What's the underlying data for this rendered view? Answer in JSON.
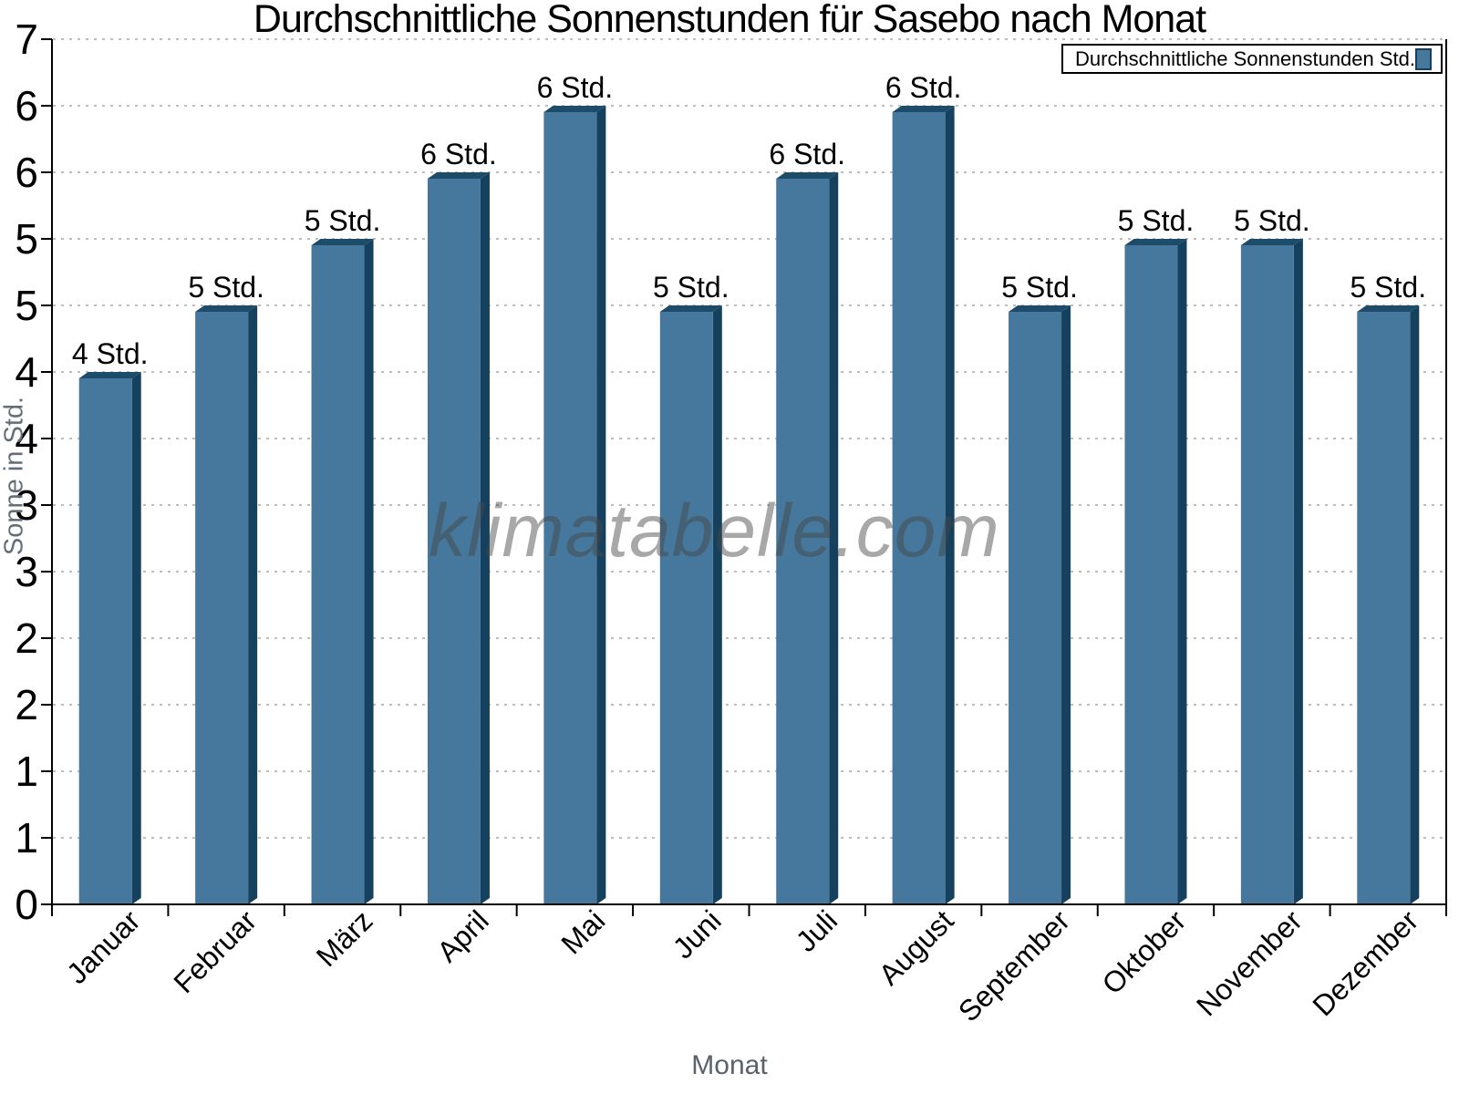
{
  "chart_data": {
    "type": "bar",
    "title": "Durchschnittliche Sonnenstunden für Sasebo nach Monat",
    "xlabel": "Monat",
    "ylabel": "Sonne in Std.",
    "categories": [
      "Januar",
      "Februar",
      "März",
      "April",
      "Mai",
      "Juni",
      "Juli",
      "August",
      "September",
      "Oktober",
      "November",
      "Dezember"
    ],
    "values": [
      4.0,
      4.5,
      5.0,
      5.5,
      6.0,
      4.5,
      5.5,
      6.0,
      4.5,
      5.0,
      5.0,
      4.5
    ],
    "data_labels": [
      "4 Std.",
      "5 Std.",
      "5 Std.",
      "6 Std.",
      "6 Std.",
      "5 Std.",
      "6 Std.",
      "6 Std.",
      "5 Std.",
      "5 Std.",
      "5 Std.",
      "5 Std."
    ],
    "unit_suffix": "Std.",
    "ylim": [
      0,
      6.5
    ],
    "y_tick_step": 0.5,
    "y_tick_labels_bottom_to_top": [
      "0",
      "1",
      "1",
      "2",
      "2",
      "3",
      "3",
      "4",
      "4",
      "5",
      "5",
      "6",
      "6",
      "7"
    ],
    "grid": "horizontal-dotted",
    "legend": {
      "label": "Durchschnittliche Sonnenstunden Std.",
      "position": "top-right"
    },
    "watermark": "klimatabelle.com",
    "colors": {
      "bar_front": "#45789C",
      "bar_top": "#1D4C6B",
      "bar_side": "#15405E",
      "grid": "#bdbdbd",
      "axis": "#000000",
      "axis_title": "#59616b",
      "tick_label": "#000000"
    }
  }
}
